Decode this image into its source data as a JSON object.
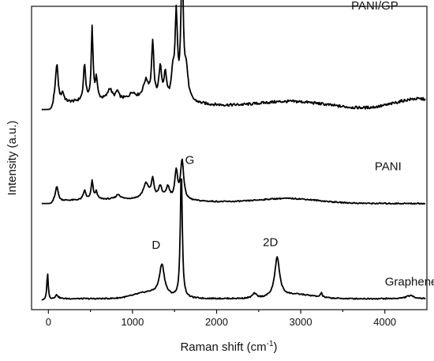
{
  "chart_data": {
    "type": "line",
    "xlabel": "Raman shift (cm",
    "xlabel_sup": "-1",
    "xlabel_suffix": ")",
    "ylabel": "Intensity (a.u.)",
    "xlim": [
      -200,
      4500
    ],
    "ylim": [
      0,
      100
    ],
    "x_ticks": [
      0,
      1000,
      2000,
      3000,
      4000
    ],
    "y_ticks_labels": false,
    "grid": false,
    "legend": "none",
    "series": [
      {
        "name": "PANI/GP",
        "offset": 66,
        "baseline_start": -80,
        "peaks": [
          {
            "x": 100,
            "h": 13,
            "w": 18
          },
          {
            "x": 170,
            "h": 3,
            "w": 20
          },
          {
            "x": 430,
            "h": 12,
            "w": 15
          },
          {
            "x": 520,
            "h": 24,
            "w": 12
          },
          {
            "x": 570,
            "h": 7,
            "w": 15
          },
          {
            "x": 730,
            "h": 3.5,
            "w": 30
          },
          {
            "x": 820,
            "h": 2.5,
            "w": 20
          },
          {
            "x": 1000,
            "h": 2,
            "w": 40
          },
          {
            "x": 1160,
            "h": 6,
            "w": 40
          },
          {
            "x": 1240,
            "h": 18,
            "w": 15
          },
          {
            "x": 1330,
            "h": 10,
            "w": 20
          },
          {
            "x": 1390,
            "h": 8,
            "w": 18
          },
          {
            "x": 1480,
            "h": 8,
            "w": 20
          },
          {
            "x": 1520,
            "h": 27,
            "w": 16
          },
          {
            "x": 1590,
            "h": 44,
            "w": 17
          },
          {
            "x": 1640,
            "h": 9,
            "w": 25
          }
        ],
        "broad": [
          {
            "x": 2900,
            "h": 2.5,
            "w": 600
          },
          {
            "x": 4400,
            "h": 3.5,
            "w": 400
          }
        ]
      },
      {
        "name": "PANI",
        "offset": 35,
        "baseline_start": -80,
        "peaks": [
          {
            "x": 100,
            "h": 5,
            "w": 18
          },
          {
            "x": 430,
            "h": 3,
            "w": 18
          },
          {
            "x": 520,
            "h": 6,
            "w": 14
          },
          {
            "x": 570,
            "h": 2.5,
            "w": 15
          },
          {
            "x": 830,
            "h": 1.5,
            "w": 30
          },
          {
            "x": 1160,
            "h": 5,
            "w": 40
          },
          {
            "x": 1240,
            "h": 6,
            "w": 20
          },
          {
            "x": 1330,
            "h": 4,
            "w": 25
          },
          {
            "x": 1420,
            "h": 4,
            "w": 25
          },
          {
            "x": 1520,
            "h": 9,
            "w": 20
          },
          {
            "x": 1590,
            "h": 13,
            "w": 22
          }
        ],
        "broad": [
          {
            "x": 2850,
            "h": 1.6,
            "w": 500
          }
        ]
      },
      {
        "name": "Graphene",
        "offset": 3,
        "baseline_start": -80,
        "peaks": [
          {
            "x": -10,
            "h": 9,
            "w": 10
          },
          {
            "x": 100,
            "h": 1.2,
            "w": 20
          },
          {
            "x": 1350,
            "h": 10,
            "w": 35
          },
          {
            "x": 1580,
            "h": 42,
            "w": 14
          },
          {
            "x": 2450,
            "h": 1.5,
            "w": 30
          },
          {
            "x": 2720,
            "h": 13,
            "w": 35
          },
          {
            "x": 3245,
            "h": 1.5,
            "w": 12
          },
          {
            "x": 4300,
            "h": 1,
            "w": 60
          }
        ],
        "broad": [
          {
            "x": 1200,
            "h": 2,
            "w": 250
          },
          {
            "x": 2950,
            "h": 1.3,
            "w": 300
          }
        ]
      }
    ],
    "annotations": [
      {
        "text": "D",
        "x": 1280,
        "y": 20
      },
      {
        "text": "G",
        "x": 1680,
        "y": 48
      },
      {
        "text": "2D",
        "x": 2640,
        "y": 21
      }
    ]
  }
}
